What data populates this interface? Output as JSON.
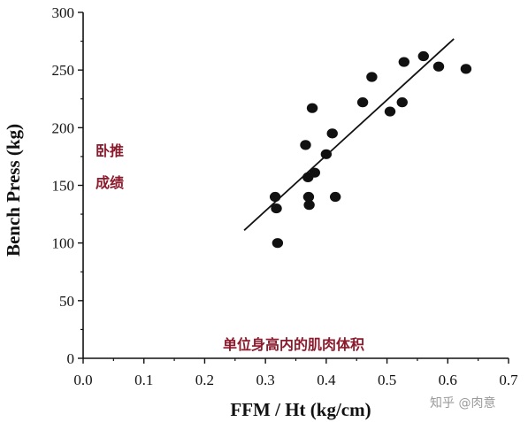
{
  "chart_data": {
    "type": "scatter",
    "title": "",
    "xlabel": "FFM / Ht (kg/cm)",
    "ylabel": "Bench Press (kg)",
    "xlim": [
      0.0,
      0.7
    ],
    "ylim": [
      0,
      300
    ],
    "xticks": [
      "0.0",
      "0.1",
      "0.2",
      "0.3",
      "0.4",
      "0.5",
      "0.6",
      "0.7"
    ],
    "yticks": [
      "0",
      "50",
      "100",
      "150",
      "200",
      "250",
      "300"
    ],
    "grid": false,
    "series": [
      {
        "points": [
          {
            "x": 0.316,
            "y": 140
          },
          {
            "x": 0.318,
            "y": 130
          },
          {
            "x": 0.32,
            "y": 100
          },
          {
            "x": 0.366,
            "y": 185
          },
          {
            "x": 0.37,
            "y": 157
          },
          {
            "x": 0.371,
            "y": 140
          },
          {
            "x": 0.372,
            "y": 133
          },
          {
            "x": 0.377,
            "y": 217
          },
          {
            "x": 0.381,
            "y": 161
          },
          {
            "x": 0.4,
            "y": 177
          },
          {
            "x": 0.41,
            "y": 195
          },
          {
            "x": 0.415,
            "y": 140
          },
          {
            "x": 0.46,
            "y": 222
          },
          {
            "x": 0.475,
            "y": 244
          },
          {
            "x": 0.505,
            "y": 214
          },
          {
            "x": 0.525,
            "y": 222
          },
          {
            "x": 0.528,
            "y": 257
          },
          {
            "x": 0.56,
            "y": 262
          },
          {
            "x": 0.585,
            "y": 253
          },
          {
            "x": 0.63,
            "y": 251
          }
        ]
      }
    ],
    "trendline": {
      "x": [
        0.265,
        0.61
      ],
      "y": [
        111,
        277
      ]
    },
    "annotations": {
      "ylabel_cn_line1": "卧推",
      "ylabel_cn_line2": "成绩",
      "xlabel_cn": "单位身高内的肌肉体积"
    }
  },
  "watermark": "知乎 @肉意",
  "colors": {
    "points": "#111111",
    "annotation": "#8b1a2c"
  }
}
